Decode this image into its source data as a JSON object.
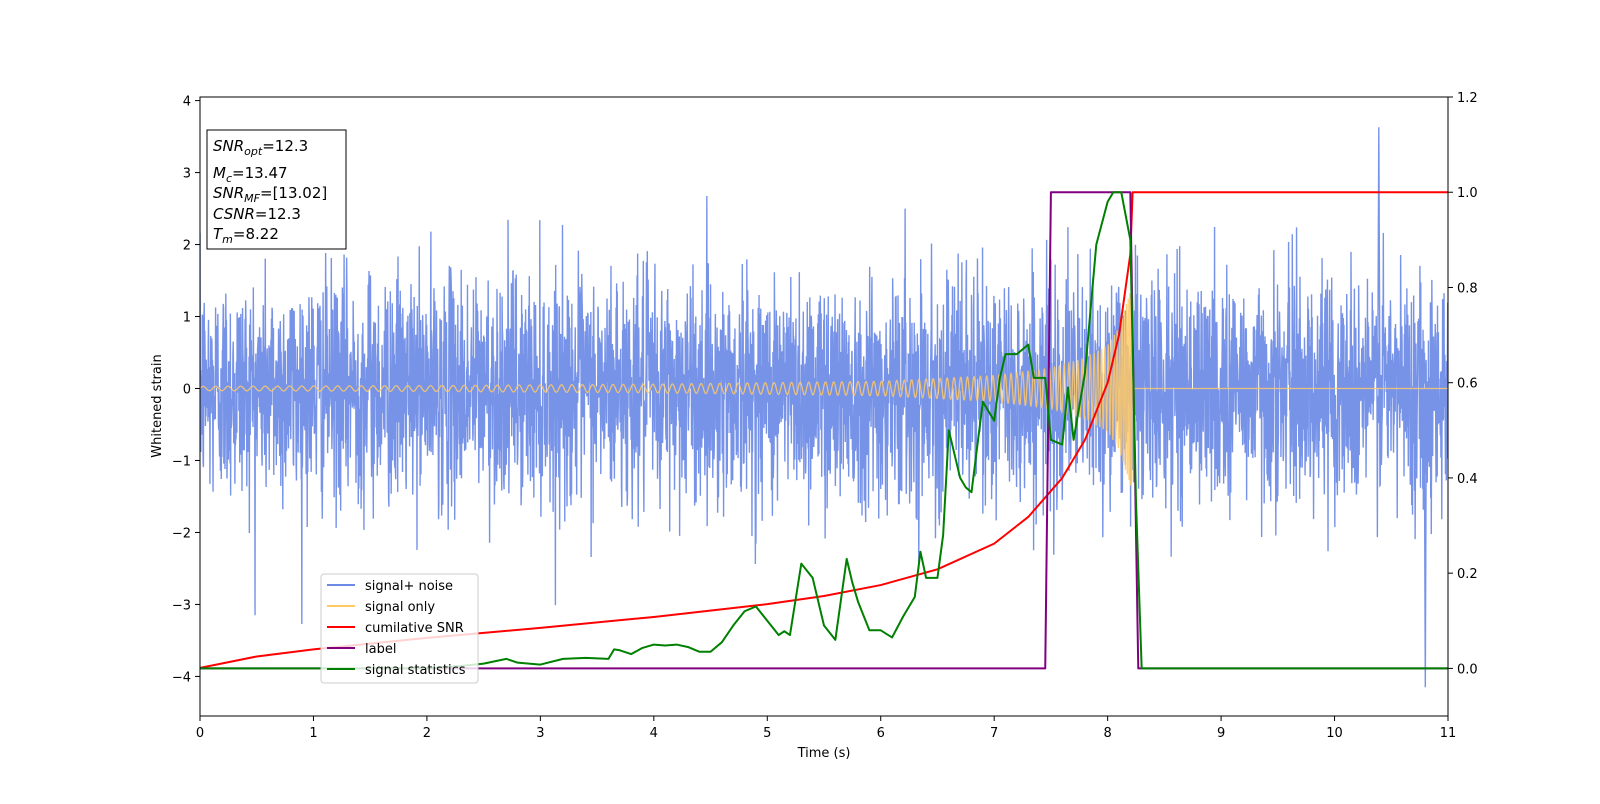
{
  "chart_data": {
    "type": "line",
    "xlabel": "Time (s)",
    "ylabel": "Whitened strain",
    "xlim": [
      0,
      11
    ],
    "ylim_left": [
      -4.55,
      4.05
    ],
    "ylim_right": [
      -0.1,
      1.2
    ],
    "x_ticks": [
      "0",
      "1",
      "2",
      "3",
      "4",
      "5",
      "6",
      "7",
      "8",
      "9",
      "10",
      "11"
    ],
    "y_left_ticks": [
      "4",
      "3",
      "2",
      "1",
      "0",
      "−1",
      "−2",
      "−3",
      "−4"
    ],
    "y_right_ticks": [
      "1.2",
      "1.0",
      "0.8",
      "0.6",
      "0.4",
      "0.2",
      "0.0"
    ],
    "grid": false,
    "legend_position": "lower-left",
    "info_box": {
      "snr_opt": "=12.3",
      "mc": "=13.47",
      "snr_mf": "=[13.02]",
      "csnr": "=12.3",
      "tm": "=8.22"
    },
    "series": [
      {
        "name": "signal+ noise",
        "axis": "left",
        "color": "#6b8ae6",
        "description": "dense noisy trace, roughly ±2 amplitude with spikes up to about 3.6 and down to about -4.2",
        "envelope": [
          -2.0,
          2.0
        ],
        "extremes": {
          "max": 3.63,
          "min": -4.15
        }
      },
      {
        "name": "signal only",
        "axis": "left",
        "color": "#ffc966",
        "description": "chirp oscillation around 0, amplitude growing until merger near t=8.22 then flat",
        "amplitude_points": [
          {
            "t": 0.0,
            "amp": 0.03
          },
          {
            "t": 2.0,
            "amp": 0.04
          },
          {
            "t": 4.0,
            "amp": 0.06
          },
          {
            "t": 6.0,
            "amp": 0.1
          },
          {
            "t": 7.0,
            "amp": 0.18
          },
          {
            "t": 7.5,
            "amp": 0.28
          },
          {
            "t": 7.8,
            "amp": 0.42
          },
          {
            "t": 8.0,
            "amp": 0.6
          },
          {
            "t": 8.1,
            "amp": 0.85
          },
          {
            "t": 8.2,
            "amp": 1.35
          },
          {
            "t": 8.22,
            "amp": 0.0
          }
        ]
      },
      {
        "name": "cumilative SNR",
        "axis": "right",
        "color": "#ff0000",
        "x": [
          0,
          0.5,
          1,
          2,
          3,
          4,
          5,
          5.5,
          6,
          6.5,
          7,
          7.3,
          7.6,
          7.8,
          8.0,
          8.1,
          8.2,
          8.22,
          11
        ],
        "y": [
          0.001,
          0.025,
          0.04,
          0.064,
          0.085,
          0.108,
          0.135,
          0.152,
          0.175,
          0.208,
          0.262,
          0.318,
          0.4,
          0.48,
          0.6,
          0.7,
          0.87,
          1.0,
          1.0
        ]
      },
      {
        "name": "label",
        "axis": "right",
        "color": "#800080",
        "x": [
          0,
          7.45,
          7.5,
          8.2,
          8.27,
          11
        ],
        "y": [
          0,
          0,
          1,
          1,
          0,
          0
        ]
      },
      {
        "name": "signal statistics",
        "axis": "right",
        "color": "#008000",
        "x": [
          0,
          1.0,
          2.0,
          2.3,
          2.5,
          2.6,
          2.7,
          2.8,
          3.0,
          3.2,
          3.4,
          3.6,
          3.65,
          3.7,
          3.8,
          3.9,
          4.0,
          4.1,
          4.2,
          4.3,
          4.4,
          4.5,
          4.6,
          4.7,
          4.8,
          4.9,
          5.0,
          5.1,
          5.15,
          5.2,
          5.3,
          5.4,
          5.5,
          5.6,
          5.7,
          5.75,
          5.8,
          5.9,
          6.0,
          6.1,
          6.2,
          6.3,
          6.35,
          6.4,
          6.5,
          6.55,
          6.6,
          6.7,
          6.75,
          6.8,
          6.9,
          7.0,
          7.05,
          7.1,
          7.2,
          7.3,
          7.35,
          7.45,
          7.5,
          7.6,
          7.65,
          7.7,
          7.8,
          7.9,
          8.0,
          8.05,
          8.12,
          8.2,
          8.25,
          8.3,
          8.5,
          11
        ],
        "y": [
          0.0,
          0.0,
          0.0,
          0.005,
          0.01,
          0.015,
          0.02,
          0.012,
          0.008,
          0.02,
          0.022,
          0.02,
          0.04,
          0.038,
          0.03,
          0.043,
          0.05,
          0.048,
          0.05,
          0.045,
          0.035,
          0.035,
          0.055,
          0.09,
          0.12,
          0.13,
          0.1,
          0.07,
          0.078,
          0.07,
          0.22,
          0.19,
          0.09,
          0.06,
          0.23,
          0.18,
          0.14,
          0.08,
          0.08,
          0.065,
          0.11,
          0.15,
          0.245,
          0.19,
          0.19,
          0.28,
          0.5,
          0.4,
          0.38,
          0.37,
          0.56,
          0.52,
          0.61,
          0.66,
          0.66,
          0.68,
          0.61,
          0.61,
          0.48,
          0.47,
          0.59,
          0.48,
          0.62,
          0.89,
          0.98,
          1.0,
          1.0,
          0.9,
          0.35,
          0.0,
          0.0,
          0.0
        ]
      }
    ]
  }
}
